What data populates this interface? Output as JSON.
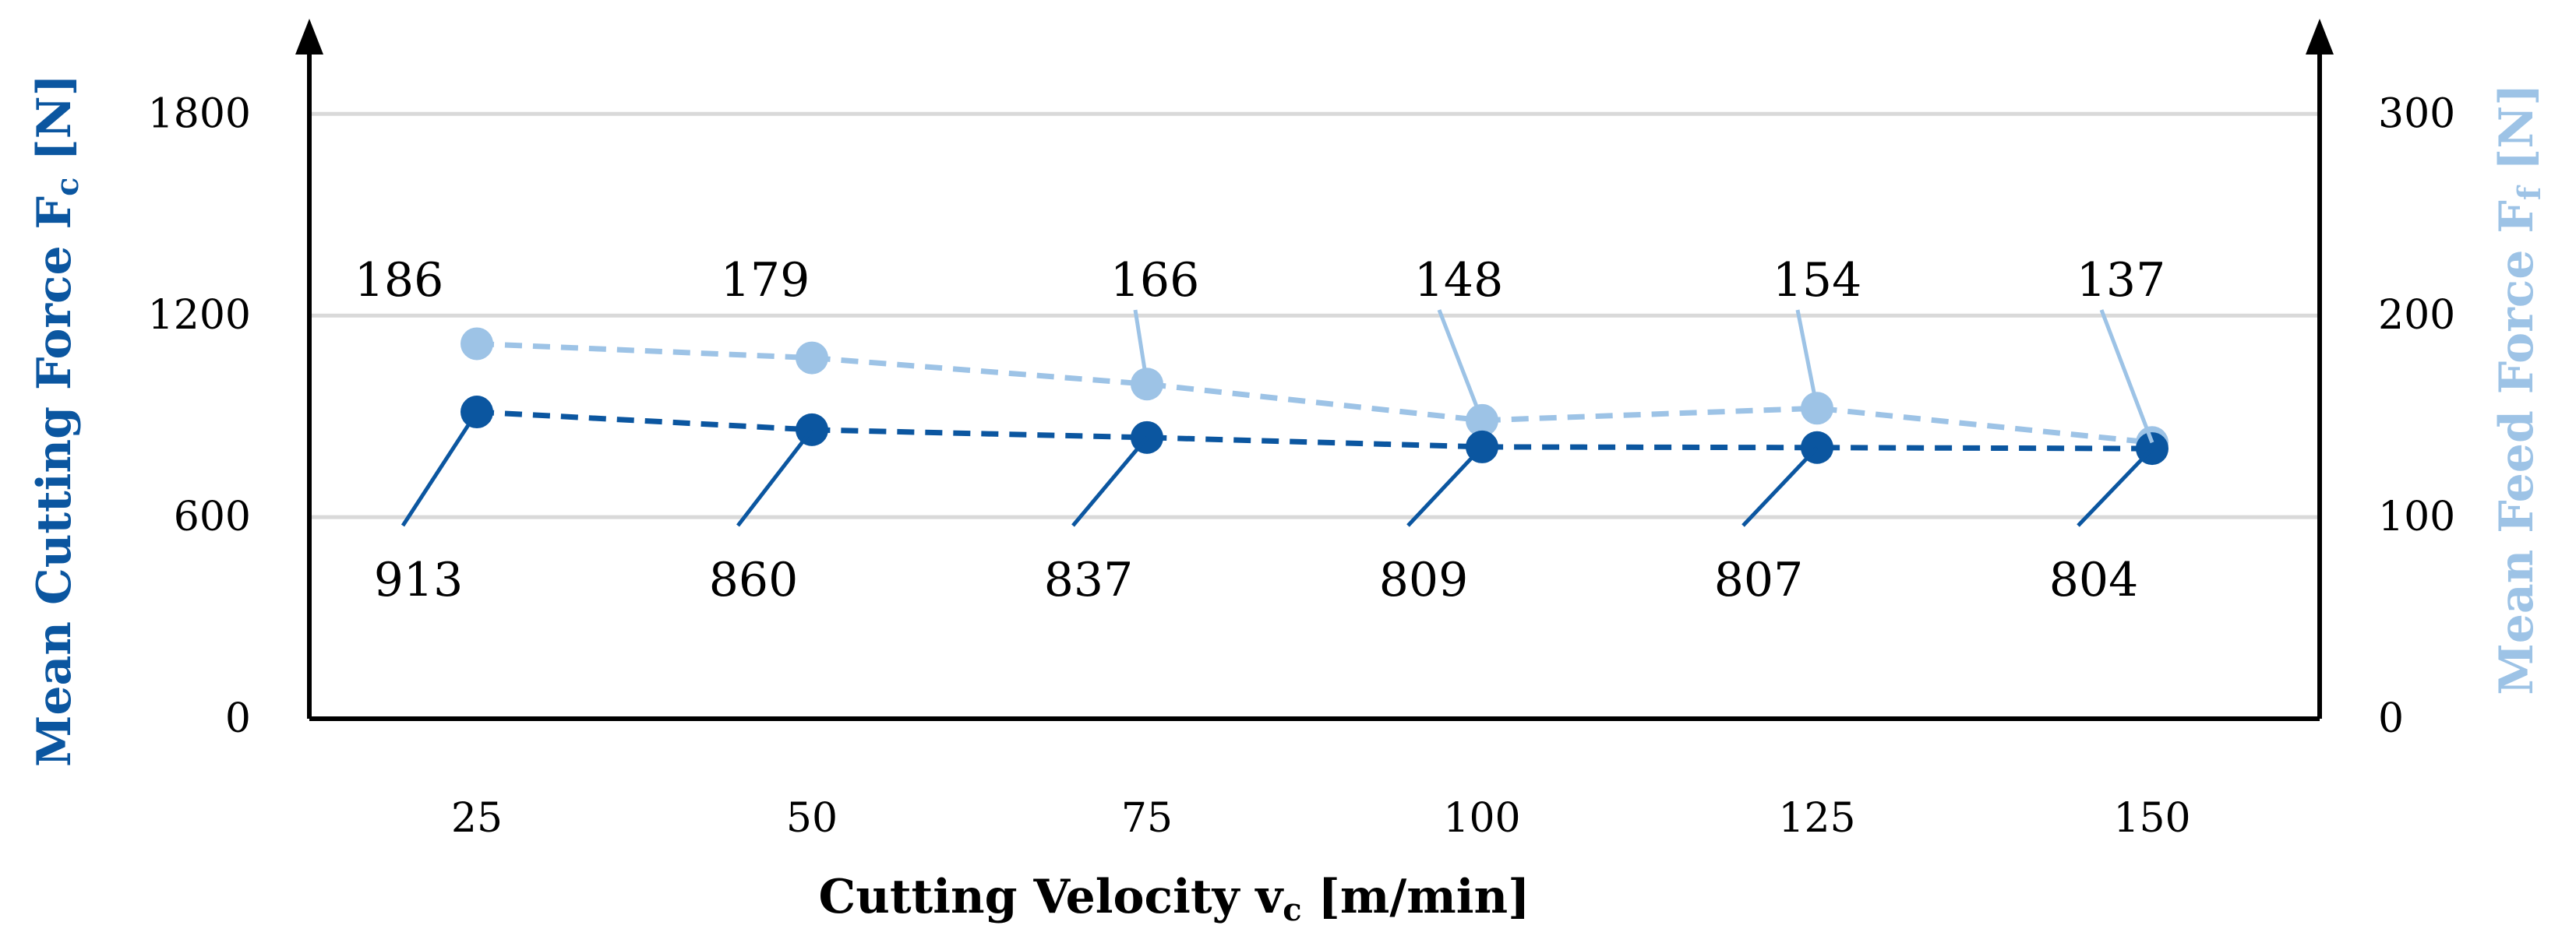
{
  "chart_data": {
    "type": "line",
    "title": "",
    "xlabel": "Cutting Velocity v",
    "xlabel_sub": "c",
    "xlabel_suffix": " [m/min]",
    "ylabel_left": "Mean Cutting Force F",
    "ylabel_left_sub": "c",
    "ylabel_left_suffix": " [N]",
    "ylabel_right": "Mean Feed Force F",
    "ylabel_right_sub": "f",
    "ylabel_right_suffix": " [N]",
    "categories": [
      "25",
      "50",
      "75",
      "100",
      "125",
      "150"
    ],
    "y_left": {
      "ticks": [
        "0",
        "600",
        "1200",
        "1800"
      ],
      "lim": [
        0,
        2000
      ]
    },
    "y_right": {
      "ticks": [
        "0",
        "100",
        "200",
        "300"
      ],
      "lim": [
        0,
        333.33
      ]
    },
    "grid": true,
    "series": [
      {
        "name": "Mean Cutting Force Fc",
        "axis": "left",
        "style": "dashed",
        "color": "#0B56A0",
        "values": [
          913,
          860,
          837,
          809,
          807,
          804
        ],
        "labels": [
          "913",
          "860",
          "837",
          "809",
          "807",
          "804"
        ]
      },
      {
        "name": "Mean Feed Force Ff",
        "axis": "right",
        "style": "dashed",
        "color": "#9DC3E6",
        "values": [
          186,
          179,
          166,
          148,
          154,
          137
        ],
        "labels": [
          "186",
          "179",
          "166",
          "148",
          "154",
          "137"
        ]
      }
    ]
  }
}
